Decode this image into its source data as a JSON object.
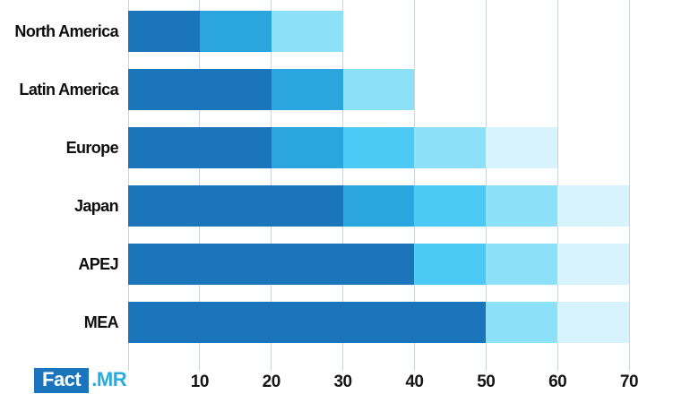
{
  "chart_data": {
    "type": "bar",
    "orientation": "horizontal",
    "stacked": true,
    "title": "",
    "categories": [
      "North America",
      "Latin America",
      "Europe",
      "Japan",
      "APEJ",
      "MEA"
    ],
    "totals": [
      30,
      40,
      60,
      70,
      70,
      70
    ],
    "xlim": [
      0,
      70
    ],
    "x_ticks": [
      10,
      20,
      30,
      40,
      50,
      60,
      70
    ],
    "grid": true,
    "legend": "none",
    "gridline_color": "#ccd4db",
    "tick_label_color": "#161616",
    "category_label_color": "#0e0e0e",
    "palette": {
      "dark_blue": "#1b75bb",
      "medium_blue": "#2ba5dd",
      "bright_cyan": "#4cc9f5",
      "light_cyan": "#8ce1f8",
      "pale_cyan": "#d7f3fc"
    },
    "bars": [
      {
        "label": "North America",
        "total": 30,
        "segments": [
          {
            "from": 0,
            "to": 10,
            "color": "#1b75bb"
          },
          {
            "from": 10,
            "to": 20,
            "color": "#2ba5dd"
          },
          {
            "from": 20,
            "to": 30,
            "color": "#8ce1f8"
          }
        ]
      },
      {
        "label": "Latin America",
        "total": 40,
        "segments": [
          {
            "from": 0,
            "to": 20,
            "color": "#1b75bb"
          },
          {
            "from": 20,
            "to": 30,
            "color": "#2ba5dd"
          },
          {
            "from": 30,
            "to": 40,
            "color": "#8ce1f8"
          }
        ]
      },
      {
        "label": "Europe",
        "total": 60,
        "segments": [
          {
            "from": 0,
            "to": 20,
            "color": "#1b75bb"
          },
          {
            "from": 20,
            "to": 30,
            "color": "#2ba5dd"
          },
          {
            "from": 30,
            "to": 40,
            "color": "#4cc9f5"
          },
          {
            "from": 40,
            "to": 50,
            "color": "#8ce1f8"
          },
          {
            "from": 50,
            "to": 60,
            "color": "#d7f3fc"
          }
        ]
      },
      {
        "label": "Japan",
        "total": 70,
        "segments": [
          {
            "from": 0,
            "to": 30,
            "color": "#1b75bb"
          },
          {
            "from": 30,
            "to": 40,
            "color": "#2ba5dd"
          },
          {
            "from": 40,
            "to": 50,
            "color": "#4cc9f5"
          },
          {
            "from": 50,
            "to": 60,
            "color": "#8ce1f8"
          },
          {
            "from": 60,
            "to": 70,
            "color": "#d7f3fc"
          }
        ]
      },
      {
        "label": "APEJ",
        "total": 70,
        "segments": [
          {
            "from": 0,
            "to": 40,
            "color": "#1b75bb"
          },
          {
            "from": 40,
            "to": 50,
            "color": "#4cc9f5"
          },
          {
            "from": 50,
            "to": 60,
            "color": "#8ce1f8"
          },
          {
            "from": 60,
            "to": 70,
            "color": "#d7f3fc"
          }
        ]
      },
      {
        "label": "MEA",
        "total": 70,
        "segments": [
          {
            "from": 0,
            "to": 50,
            "color": "#1b75bb"
          },
          {
            "from": 50,
            "to": 60,
            "color": "#8ce1f8"
          },
          {
            "from": 60,
            "to": 70,
            "color": "#d7f3fc"
          }
        ]
      }
    ]
  },
  "logo": {
    "fact_text": "Fact",
    "mr_text": ".MR",
    "box_color": "#1b75bc",
    "fact_text_color": "#ffffff",
    "mr_text_color": "#29abe2"
  }
}
